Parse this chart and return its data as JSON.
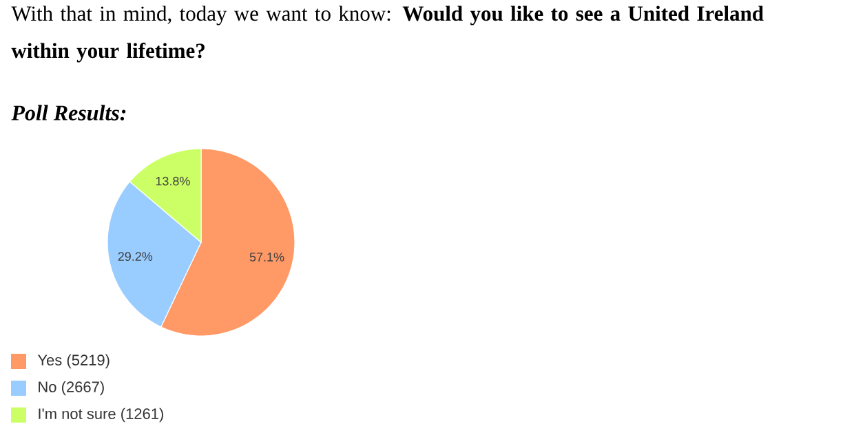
{
  "chart_data": {
    "type": "pie",
    "title": "With that in mind, today we want to know: **Would you like to see a United Ireland within your lifetime?**",
    "subtitle": "Poll Results:",
    "categories": [
      "Yes (5219)",
      "No (2667)",
      "I'm not sure (1261)"
    ],
    "values": [
      57.1,
      29.2,
      13.8
    ],
    "value_labels": [
      "57.1%",
      "29.2%",
      "13.8%"
    ],
    "colors": [
      "#ff9966",
      "#99ccff",
      "#ccff66"
    ],
    "legend": "bottom"
  }
}
